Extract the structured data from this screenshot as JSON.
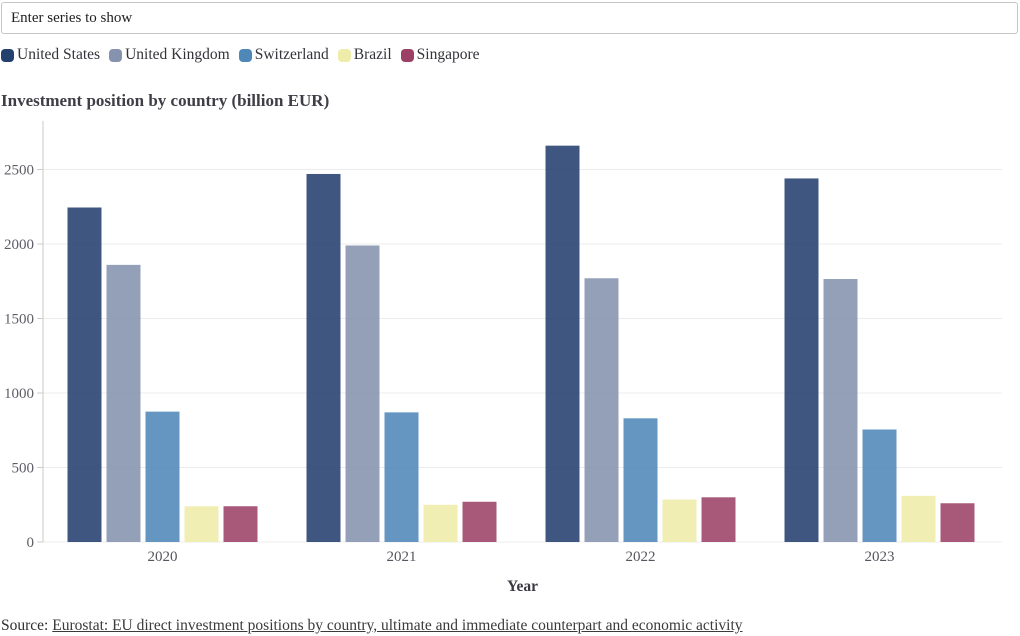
{
  "search": {
    "placeholder": "Enter series to show"
  },
  "chart_data": {
    "type": "bar",
    "title": "Investment position by country (billion EUR)",
    "xlabel": "Year",
    "ylabel": "",
    "categories": [
      "2020",
      "2021",
      "2022",
      "2023"
    ],
    "series": [
      {
        "name": "United States",
        "color": "#24406e",
        "values": [
          2245,
          2470,
          2660,
          2440
        ]
      },
      {
        "name": "United Kingdom",
        "color": "#8593ae",
        "values": [
          1860,
          1990,
          1770,
          1765
        ]
      },
      {
        "name": "Switzerland",
        "color": "#4f87b8",
        "values": [
          875,
          870,
          830,
          755
        ]
      },
      {
        "name": "Brazil",
        "color": "#efecaa",
        "values": [
          240,
          250,
          285,
          310
        ]
      },
      {
        "name": "Singapore",
        "color": "#9c4165",
        "values": [
          240,
          270,
          300,
          260
        ]
      }
    ],
    "ylim": [
      0,
      2500
    ],
    "yticks": [
      0,
      500,
      1000,
      1500,
      2000,
      2500
    ],
    "grid": true,
    "legend_position": "top"
  },
  "source": {
    "prefix": "Source: ",
    "link_text": "Eurostat: EU direct investment positions by country, ultimate and immediate counterpart and economic activity"
  }
}
